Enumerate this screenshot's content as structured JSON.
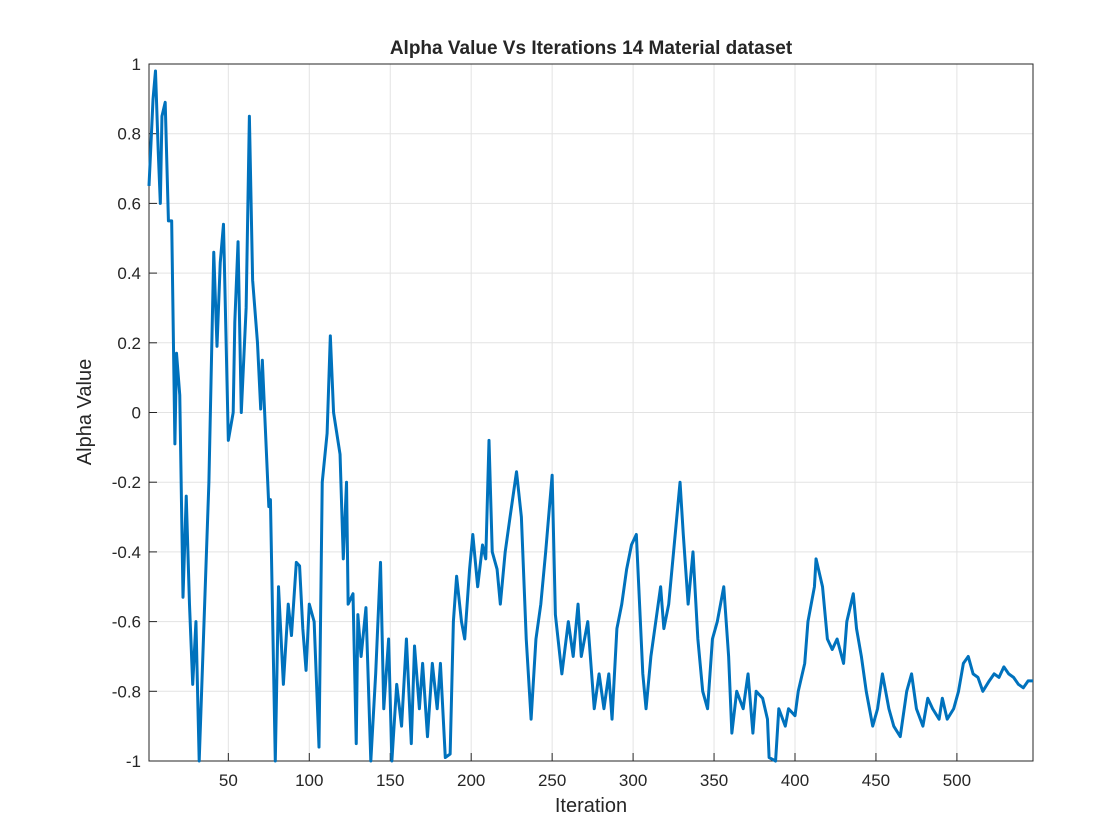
{
  "chart_data": {
    "type": "line",
    "title": "Alpha Value Vs Iterations 14 Material dataset",
    "xlabel": "Iteration",
    "ylabel": "Alpha Value",
    "color": "#0072bd",
    "grid": true,
    "xlim": [
      1,
      547
    ],
    "ylim": [
      -1,
      1
    ],
    "xticks": [
      50,
      100,
      150,
      200,
      250,
      300,
      350,
      400,
      450,
      500
    ],
    "yticks": [
      -1,
      -0.8,
      -0.6,
      -0.4,
      -0.2,
      0,
      0.2,
      0.4,
      0.6,
      0.8,
      1
    ],
    "x": [
      1,
      3.5,
      5,
      6.7,
      8,
      9,
      11,
      13,
      15,
      17,
      18,
      20,
      22,
      24,
      26,
      28,
      30,
      32,
      38,
      41,
      43,
      45,
      47,
      50,
      53,
      54,
      56,
      58,
      61,
      63,
      65,
      68,
      70,
      71,
      75,
      76,
      79,
      81,
      84,
      87,
      89,
      92,
      94,
      96,
      98,
      100,
      103,
      106,
      108,
      111,
      113,
      115,
      119,
      121,
      123,
      124,
      127,
      129,
      130,
      132,
      135,
      138,
      141,
      144,
      146,
      149,
      151,
      154,
      157,
      160,
      163,
      165,
      168,
      170,
      173,
      176,
      179,
      181,
      184,
      187,
      189,
      191,
      194,
      196,
      199,
      201,
      204,
      207,
      209,
      211,
      213,
      216,
      218,
      221,
      224,
      228,
      231,
      234,
      237,
      240,
      243,
      246,
      250,
      252,
      256,
      260,
      263,
      266,
      268,
      272,
      276,
      279,
      282,
      285,
      287,
      290,
      293,
      296,
      299,
      302,
      306,
      308,
      311,
      314,
      317,
      319,
      322,
      325,
      329,
      331,
      334,
      337,
      340,
      343,
      346,
      349,
      352,
      356,
      359,
      361,
      364,
      368,
      371,
      374,
      376,
      380,
      383,
      384,
      388,
      390,
      394,
      396,
      400,
      402,
      406,
      408,
      412,
      413,
      417,
      420,
      423,
      426,
      430,
      432,
      436,
      438,
      441,
      444,
      448,
      451,
      454,
      458,
      461,
      465,
      469,
      472,
      475,
      479,
      482,
      485,
      489,
      491,
      494,
      498,
      501,
      504,
      507,
      510,
      513,
      516,
      520,
      523,
      526,
      529,
      532,
      535,
      538,
      541,
      544,
      547
    ],
    "values": [
      0.65,
      0.9,
      0.98,
      0.75,
      0.6,
      0.85,
      0.89,
      0.55,
      0.55,
      -0.09,
      0.17,
      0.05,
      -0.53,
      -0.24,
      -0.55,
      -0.78,
      -0.6,
      -1,
      -0.2,
      0.46,
      0.19,
      0.43,
      0.54,
      -0.08,
      0,
      0.26,
      0.49,
      0,
      0.3,
      0.85,
      0.38,
      0.2,
      0.01,
      0.15,
      -0.27,
      -0.25,
      -1,
      -0.5,
      -0.78,
      -0.55,
      -0.64,
      -0.43,
      -0.44,
      -0.62,
      -0.74,
      -0.55,
      -0.6,
      -0.96,
      -0.2,
      -0.06,
      0.22,
      0,
      -0.12,
      -0.42,
      -0.2,
      -0.55,
      -0.52,
      -0.95,
      -0.58,
      -0.7,
      -0.56,
      -1,
      -0.75,
      -0.43,
      -0.85,
      -0.65,
      -1,
      -0.78,
      -0.9,
      -0.65,
      -0.95,
      -0.67,
      -0.85,
      -0.72,
      -0.93,
      -0.72,
      -0.85,
      -0.72,
      -0.99,
      -0.98,
      -0.6,
      -0.47,
      -0.6,
      -0.65,
      -0.45,
      -0.35,
      -0.5,
      -0.38,
      -0.42,
      -0.08,
      -0.4,
      -0.45,
      -0.55,
      -0.4,
      -0.3,
      -0.17,
      -0.3,
      -0.65,
      -0.88,
      -0.65,
      -0.55,
      -0.4,
      -0.18,
      -0.58,
      -0.75,
      -0.6,
      -0.7,
      -0.55,
      -0.7,
      -0.6,
      -0.85,
      -0.75,
      -0.85,
      -0.75,
      -0.88,
      -0.62,
      -0.55,
      -0.45,
      -0.38,
      -0.35,
      -0.75,
      -0.85,
      -0.7,
      -0.6,
      -0.5,
      -0.62,
      -0.55,
      -0.4,
      -0.2,
      -0.35,
      -0.55,
      -0.4,
      -0.65,
      -0.8,
      -0.85,
      -0.65,
      -0.6,
      -0.5,
      -0.7,
      -0.92,
      -0.8,
      -0.85,
      -0.75,
      -0.92,
      -0.8,
      -0.82,
      -0.88,
      -0.99,
      -1,
      -0.85,
      -0.9,
      -0.85,
      -0.87,
      -0.8,
      -0.72,
      -0.6,
      -0.5,
      -0.42,
      -0.5,
      -0.65,
      -0.68,
      -0.65,
      -0.72,
      -0.6,
      -0.52,
      -0.62,
      -0.7,
      -0.8,
      -0.9,
      -0.85,
      -0.75,
      -0.85,
      -0.9,
      -0.93,
      -0.8,
      -0.75,
      -0.85,
      -0.9,
      -0.82,
      -0.85,
      -0.88,
      -0.82,
      -0.88,
      -0.85,
      -0.8,
      -0.72,
      -0.7,
      -0.75,
      -0.76,
      -0.8,
      -0.77,
      -0.75,
      -0.76,
      -0.73,
      -0.75,
      -0.76,
      -0.78,
      -0.79,
      -0.77,
      -0.77
    ]
  }
}
